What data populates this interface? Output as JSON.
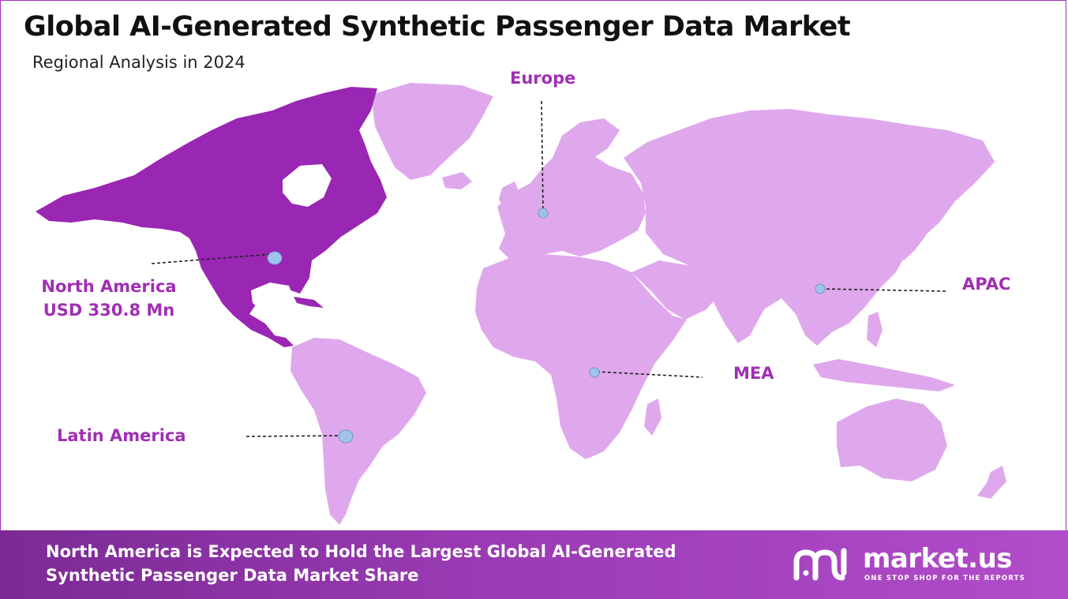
{
  "header": {
    "title": "Global AI-Generated Synthetic Passenger Data Market",
    "subtitle": "Regional Analysis in 2024"
  },
  "regions": {
    "north_america": {
      "name": "North America",
      "value": "USD 330.8 Mn",
      "highlighted": true
    },
    "europe": {
      "name": "Europe"
    },
    "apac": {
      "name": "APAC"
    },
    "mea": {
      "name": "MEA"
    },
    "latin_america": {
      "name": "Latin America"
    }
  },
  "footer": {
    "text": "North America is Expected to Hold the Largest Global AI-Generated Synthetic Passenger Data Market Share"
  },
  "brand": {
    "name": "market.us",
    "tagline": "ONE STOP SHOP FOR THE REPORTS"
  },
  "colors": {
    "highlight_region": "#9a26b4",
    "other_regions": "#dfa8ec",
    "label_text": "#a02fb5",
    "marker": "#9fc3ea",
    "footer_bg": "#9a3bb3"
  }
}
